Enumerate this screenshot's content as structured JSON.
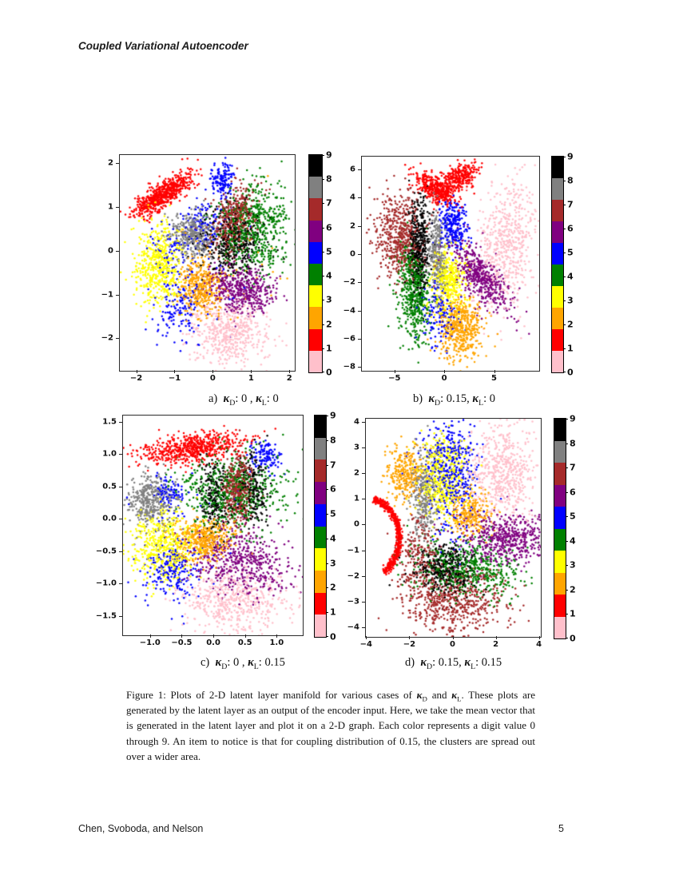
{
  "page": {
    "header": "Coupled Variational Autoencoder",
    "footer_authors": "Chen, Svoboda, and Nelson",
    "footer_page": "5"
  },
  "digit_colors": {
    "0": "#FFC0CB",
    "1": "#FF0000",
    "2": "#FFA500",
    "3": "#FFFF00",
    "4": "#008000",
    "5": "#0000FF",
    "6": "#800080",
    "7": "#A52A2A",
    "8": "#808080",
    "9": "#000000"
  },
  "colorbar": {
    "labels_top_to_bottom": [
      "9",
      "8",
      "7",
      "6",
      "5",
      "4",
      "3",
      "2",
      "1",
      "0"
    ],
    "segments_top_to_bottom": [
      "#000000",
      "#808080",
      "#A52A2A",
      "#800080",
      "#0000FF",
      "#008000",
      "#FFFF00",
      "#FFA500",
      "#FF0000",
      "#FFC0CB"
    ]
  },
  "captions": {
    "a": [
      {
        "s": "t",
        "t": "a)  "
      },
      {
        "s": "k",
        "t": "κ"
      },
      {
        "s": "sub",
        "t": "D"
      },
      {
        "s": "t",
        "t": ": 0 , "
      },
      {
        "s": "k",
        "t": "κ"
      },
      {
        "s": "sub",
        "t": "L"
      },
      {
        "s": "t",
        "t": ": 0"
      }
    ],
    "b": [
      {
        "s": "t",
        "t": "b)  "
      },
      {
        "s": "k",
        "t": "κ"
      },
      {
        "s": "sub",
        "t": "D"
      },
      {
        "s": "t",
        "t": ": 0.15, "
      },
      {
        "s": "k",
        "t": "κ"
      },
      {
        "s": "sub",
        "t": "L"
      },
      {
        "s": "t",
        "t": ": 0"
      }
    ],
    "c": [
      {
        "s": "t",
        "t": "c)  "
      },
      {
        "s": "k",
        "t": "κ"
      },
      {
        "s": "sub",
        "t": "D"
      },
      {
        "s": "t",
        "t": ": 0 , "
      },
      {
        "s": "k",
        "t": "κ"
      },
      {
        "s": "sub",
        "t": "L"
      },
      {
        "s": "t",
        "t": ": 0.15"
      }
    ],
    "d": [
      {
        "s": "t",
        "t": "d)  "
      },
      {
        "s": "k",
        "t": "κ"
      },
      {
        "s": "sub",
        "t": "D"
      },
      {
        "s": "t",
        "t": ": 0.15, "
      },
      {
        "s": "k",
        "t": "κ"
      },
      {
        "s": "sub",
        "t": "L"
      },
      {
        "s": "t",
        "t": ": 0.15"
      }
    ],
    "figure": [
      {
        "s": "t",
        "t": "Figure 1: Plots of 2-D latent layer manifold for various cases of "
      },
      {
        "s": "k",
        "t": "κ"
      },
      {
        "s": "sub",
        "t": "D"
      },
      {
        "s": "t",
        "t": " and "
      },
      {
        "s": "k",
        "t": "κ"
      },
      {
        "s": "sub",
        "t": "L"
      },
      {
        "s": "t",
        "t": ". These plots are generated by the latent layer as an output of the encoder input. Here, we take the mean vector that is generated in the latent layer and plot it on a 2-D graph. Each color represents a digit value 0 through 9. An item to notice is that for coupling distribution of 0.15, the clusters are spread out over a wider area."
      }
    ]
  },
  "chart_data": [
    {
      "type": "scatter",
      "label": "a",
      "kappa_d": "0",
      "kappa_l": "0",
      "seed": 11,
      "marker_radius": 1.25,
      "xlim": [
        -2.45,
        2.12
      ],
      "ylim": [
        -2.72,
        2.2
      ],
      "xticks": [
        -2,
        -1,
        0,
        1,
        2
      ],
      "xtick_labels": [
        "−2",
        "−1",
        "0",
        "1",
        "2"
      ],
      "yticks": [
        2,
        1,
        0,
        -1,
        -2
      ],
      "ytick_labels": [
        "2",
        "1",
        "0",
        "−1",
        "−2"
      ],
      "clusters": [
        {
          "d": 1,
          "blobs": [
            {
              "x": -1.35,
              "y": 1.28,
              "sx": 0.42,
              "sy": 0.13,
              "rot": 30,
              "n": 650
            }
          ]
        },
        {
          "d": 8,
          "blobs": [
            {
              "x": -0.55,
              "y": 0.42,
              "sx": 0.3,
              "sy": 0.25,
              "rot": 0,
              "n": 380
            }
          ]
        },
        {
          "d": 5,
          "blobs": [
            {
              "x": 0.22,
              "y": 1.62,
              "sx": 0.15,
              "sy": 0.22,
              "rot": 0,
              "n": 150
            },
            {
              "x": -0.3,
              "y": 0.6,
              "sx": 0.28,
              "sy": 0.28,
              "rot": 0,
              "n": 110
            },
            {
              "x": -0.85,
              "y": -1.3,
              "sx": 0.28,
              "sy": 0.38,
              "rot": 0,
              "n": 140
            },
            {
              "x": -1.15,
              "y": -0.05,
              "sx": 0.3,
              "sy": 0.3,
              "rot": 0,
              "n": 70
            },
            {
              "x": -0.3,
              "y": -0.5,
              "sx": 0.9,
              "sy": 0.7,
              "rot": 0,
              "n": 50
            }
          ]
        },
        {
          "d": 3,
          "blobs": [
            {
              "x": -1.45,
              "y": -0.3,
              "sx": 0.3,
              "sy": 0.48,
              "rot": 0,
              "n": 520
            }
          ]
        },
        {
          "d": 2,
          "blobs": [
            {
              "x": -0.35,
              "y": -0.8,
              "sx": 0.28,
              "sy": 0.32,
              "rot": 0,
              "n": 430
            },
            {
              "x": 0.3,
              "y": -0.2,
              "sx": 0.8,
              "sy": 0.8,
              "rot": 0,
              "n": 30
            }
          ]
        },
        {
          "d": 4,
          "blobs": [
            {
              "x": 1.0,
              "y": 0.6,
              "sx": 0.42,
              "sy": 0.5,
              "rot": -30,
              "n": 560
            },
            {
              "x": 1.35,
              "y": -0.15,
              "sx": 0.25,
              "sy": 0.25,
              "rot": 0,
              "n": 70
            }
          ]
        },
        {
          "d": 7,
          "blobs": [
            {
              "x": 0.55,
              "y": 0.75,
              "sx": 0.26,
              "sy": 0.4,
              "rot": -25,
              "n": 420
            }
          ]
        },
        {
          "d": 9,
          "blobs": [
            {
              "x": 0.5,
              "y": 0.22,
              "sx": 0.4,
              "sy": 0.38,
              "rot": 0,
              "n": 400
            }
          ]
        },
        {
          "d": 6,
          "blobs": [
            {
              "x": 0.72,
              "y": -0.85,
              "sx": 0.45,
              "sy": 0.28,
              "rot": -10,
              "n": 520
            }
          ]
        },
        {
          "d": 0,
          "blobs": [
            {
              "x": 0.45,
              "y": -1.85,
              "sx": 0.5,
              "sy": 0.36,
              "rot": 0,
              "n": 520
            }
          ]
        }
      ]
    },
    {
      "type": "scatter",
      "label": "b",
      "kappa_d": "0.15",
      "kappa_l": "0",
      "seed": 22,
      "marker_radius": 1.25,
      "xlim": [
        -8.35,
        9.45
      ],
      "ylim": [
        -8.2,
        6.95
      ],
      "xticks": [
        -5,
        0,
        5
      ],
      "xtick_labels": [
        "−5",
        "0",
        "5"
      ],
      "yticks": [
        6,
        4,
        2,
        0,
        -2,
        -4,
        -6,
        -8
      ],
      "ytick_labels": [
        "6",
        "4",
        "2",
        "0",
        "−2",
        "−4",
        "−6",
        "−8"
      ],
      "clusters": [
        {
          "d": 1,
          "blobs": [
            {
              "x": -1.3,
              "y": 4.8,
              "sx": 1.0,
              "sy": 0.4,
              "rot": -25,
              "n": 280
            },
            {
              "x": 1.3,
              "y": 5.4,
              "sx": 1.1,
              "sy": 0.45,
              "rot": 20,
              "n": 300
            },
            {
              "x": 0.1,
              "y": 4.3,
              "sx": 0.5,
              "sy": 0.35,
              "rot": 0,
              "n": 80
            }
          ]
        },
        {
          "d": 7,
          "blobs": [
            {
              "x": -4.6,
              "y": 1.3,
              "sx": 1.25,
              "sy": 1.5,
              "rot": 0,
              "n": 560
            }
          ]
        },
        {
          "d": 9,
          "blobs": [
            {
              "x": -2.6,
              "y": 0.6,
              "sx": 0.55,
              "sy": 1.7,
              "rot": 0,
              "n": 450
            }
          ]
        },
        {
          "d": 4,
          "blobs": [
            {
              "x": -3.1,
              "y": -2.6,
              "sx": 0.75,
              "sy": 1.7,
              "rot": 8,
              "n": 540
            }
          ]
        },
        {
          "d": 8,
          "blobs": [
            {
              "x": -0.8,
              "y": 0.2,
              "sx": 0.5,
              "sy": 1.5,
              "rot": 0,
              "n": 300
            }
          ]
        },
        {
          "d": 5,
          "blobs": [
            {
              "x": 0.9,
              "y": 2.2,
              "sx": 0.75,
              "sy": 0.9,
              "rot": 0,
              "n": 270
            },
            {
              "x": -0.6,
              "y": -4.3,
              "sx": 0.9,
              "sy": 1.2,
              "rot": 0,
              "n": 160
            }
          ]
        },
        {
          "d": 3,
          "blobs": [
            {
              "x": 0.3,
              "y": -1.9,
              "sx": 0.85,
              "sy": 1.2,
              "rot": 0,
              "n": 440
            }
          ]
        },
        {
          "d": 2,
          "blobs": [
            {
              "x": 1.6,
              "y": -5.2,
              "sx": 1.05,
              "sy": 1.15,
              "rot": 0,
              "n": 500
            }
          ]
        },
        {
          "d": 6,
          "blobs": [
            {
              "x": 3.6,
              "y": -1.6,
              "sx": 1.8,
              "sy": 0.75,
              "rot": -38,
              "n": 540
            }
          ]
        },
        {
          "d": 0,
          "blobs": [
            {
              "x": 6.2,
              "y": 0.8,
              "sx": 1.35,
              "sy": 2.3,
              "rot": -12,
              "n": 580
            }
          ]
        }
      ]
    },
    {
      "type": "scatter",
      "label": "c",
      "kappa_d": "0",
      "kappa_l": "0.15",
      "seed": 33,
      "marker_radius": 1.25,
      "xlim": [
        -1.44,
        1.4
      ],
      "ylim": [
        -1.79,
        1.61
      ],
      "xticks": [
        -1.0,
        -0.5,
        0.0,
        0.5,
        1.0
      ],
      "xtick_labels": [
        "−1.0",
        "−0.5",
        "0.0",
        "0.5",
        "1.0"
      ],
      "yticks": [
        1.5,
        1.0,
        0.5,
        0.0,
        -0.5,
        -1.0,
        -1.5
      ],
      "ytick_labels": [
        "1.5",
        "1.0",
        "0.5",
        "0.0",
        "−0.5",
        "−1.0",
        "−1.5"
      ],
      "clusters": [
        {
          "d": 1,
          "blobs": [
            {
              "x": -0.35,
              "y": 1.1,
              "sx": 0.42,
              "sy": 0.11,
              "rot": 7,
              "n": 620
            }
          ]
        },
        {
          "d": 5,
          "blobs": [
            {
              "x": 0.82,
              "y": 1.0,
              "sx": 0.11,
              "sy": 0.12,
              "rot": 0,
              "n": 120
            },
            {
              "x": -0.75,
              "y": 0.42,
              "sx": 0.12,
              "sy": 0.11,
              "rot": 0,
              "n": 90
            },
            {
              "x": -0.68,
              "y": -0.78,
              "sx": 0.2,
              "sy": 0.26,
              "rot": 0,
              "n": 220
            },
            {
              "x": -0.4,
              "y": -0.1,
              "sx": 0.5,
              "sy": 0.5,
              "rot": 0,
              "n": 40
            }
          ]
        },
        {
          "d": 8,
          "blobs": [
            {
              "x": -1.0,
              "y": 0.3,
              "sx": 0.2,
              "sy": 0.2,
              "rot": 0,
              "n": 380
            }
          ]
        },
        {
          "d": 4,
          "blobs": [
            {
              "x": 0.28,
              "y": 0.42,
              "sx": 0.4,
              "sy": 0.3,
              "rot": 0,
              "n": 620
            }
          ]
        },
        {
          "d": 7,
          "blobs": [
            {
              "x": 0.36,
              "y": 0.45,
              "sx": 0.12,
              "sy": 0.26,
              "rot": 0,
              "n": 380
            }
          ]
        },
        {
          "d": 9,
          "blobs": [
            {
              "x": 0.02,
              "y": 0.38,
              "sx": 0.12,
              "sy": 0.28,
              "rot": 0,
              "n": 210
            },
            {
              "x": 0.63,
              "y": 0.48,
              "sx": 0.12,
              "sy": 0.28,
              "rot": 0,
              "n": 210
            }
          ]
        },
        {
          "d": 3,
          "blobs": [
            {
              "x": -0.8,
              "y": -0.4,
              "sx": 0.26,
              "sy": 0.28,
              "rot": 0,
              "n": 520
            }
          ]
        },
        {
          "d": 2,
          "blobs": [
            {
              "x": -0.15,
              "y": -0.3,
              "sx": 0.22,
              "sy": 0.18,
              "rot": 0,
              "n": 430
            }
          ]
        },
        {
          "d": 6,
          "blobs": [
            {
              "x": 0.4,
              "y": -0.65,
              "sx": 0.4,
              "sy": 0.25,
              "rot": -8,
              "n": 530
            }
          ]
        },
        {
          "d": 0,
          "blobs": [
            {
              "x": 0.3,
              "y": -1.25,
              "sx": 0.4,
              "sy": 0.25,
              "rot": 0,
              "n": 520
            }
          ]
        }
      ]
    },
    {
      "type": "scatter",
      "label": "d",
      "kappa_d": "0.15",
      "kappa_l": "0.15",
      "seed": 44,
      "marker_radius": 1.25,
      "xlim": [
        -4.05,
        4.05
      ],
      "ylim": [
        -4.34,
        4.15
      ],
      "xticks": [
        -4,
        -2,
        0,
        2,
        4
      ],
      "xtick_labels": [
        "−4",
        "−2",
        "0",
        "2",
        "4"
      ],
      "yticks": [
        4,
        3,
        2,
        1,
        0,
        -1,
        -2,
        -3,
        -4
      ],
      "ytick_labels": [
        "4",
        "3",
        "2",
        "1",
        "0",
        "−1",
        "−2",
        "−3",
        "−4"
      ],
      "clusters": [
        {
          "d": 1,
          "blobs": [
            {
              "arc": true,
              "x": -4.05,
              "y": -0.5,
              "r": 1.55,
              "a0": -58,
              "a1": 77,
              "w": 0.07,
              "n": 560
            }
          ]
        },
        {
          "d": 2,
          "blobs": [
            {
              "x": -2.25,
              "y": 2.0,
              "sx": 0.42,
              "sy": 0.55,
              "rot": 0,
              "n": 290
            },
            {
              "x": 0.75,
              "y": 0.45,
              "sx": 0.5,
              "sy": 0.5,
              "rot": 0,
              "n": 270
            }
          ]
        },
        {
          "d": 8,
          "blobs": [
            {
              "x": -1.35,
              "y": 1.1,
              "sx": 0.33,
              "sy": 0.95,
              "rot": 0,
              "n": 340
            }
          ]
        },
        {
          "d": 3,
          "blobs": [
            {
              "x": -0.5,
              "y": 1.9,
              "sx": 0.55,
              "sy": 0.8,
              "rot": 0,
              "n": 480
            }
          ]
        },
        {
          "d": 5,
          "blobs": [
            {
              "x": -0.2,
              "y": 2.4,
              "sx": 0.65,
              "sy": 0.75,
              "rot": 0,
              "n": 400
            },
            {
              "x": 0.1,
              "y": 0.6,
              "sx": 0.55,
              "sy": 0.8,
              "rot": 0,
              "n": 90
            }
          ]
        },
        {
          "d": 0,
          "blobs": [
            {
              "x": 2.2,
              "y": 2.1,
              "sx": 0.8,
              "sy": 1.0,
              "rot": 10,
              "n": 580
            }
          ]
        },
        {
          "d": 6,
          "blobs": [
            {
              "x": 2.5,
              "y": -0.5,
              "sx": 1.05,
              "sy": 0.5,
              "rot": 0,
              "n": 540
            }
          ]
        },
        {
          "d": 4,
          "blobs": [
            {
              "x": 0.7,
              "y": -1.7,
              "sx": 1.15,
              "sy": 0.55,
              "rot": -10,
              "n": 530
            }
          ]
        },
        {
          "d": 9,
          "blobs": [
            {
              "x": -0.35,
              "y": -1.7,
              "sx": 0.7,
              "sy": 0.5,
              "rot": 0,
              "n": 380
            }
          ]
        },
        {
          "d": 7,
          "blobs": [
            {
              "x": 0.0,
              "y": -3.0,
              "sx": 1.25,
              "sy": 0.6,
              "rot": 0,
              "n": 560
            },
            {
              "x": -1.6,
              "y": -1.3,
              "sx": 0.5,
              "sy": 0.85,
              "rot": 0,
              "n": 240
            }
          ]
        }
      ]
    }
  ]
}
